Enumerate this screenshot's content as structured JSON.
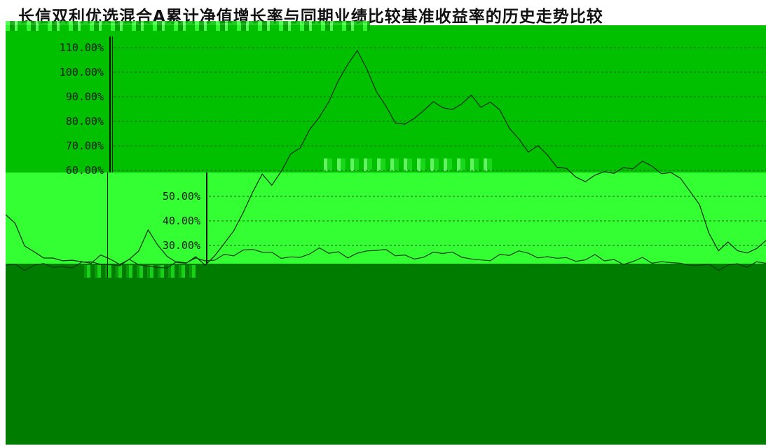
{
  "chart_data": {
    "type": "line",
    "title": "长信双利优选混合A累计净值增长率与同期业绩比较基准收益率的历史走势比较",
    "ylim": [
      0.2,
      1.1
    ],
    "y_ticks": [
      "110.00%",
      "100.00%",
      "90.00%",
      "80.00%",
      "70.00%",
      "60.00%",
      "50.00%",
      "40.00%",
      "30.00%"
    ],
    "grid": true,
    "series": [
      {
        "values": [
          0.42,
          0.38,
          0.3,
          0.26,
          0.25,
          0.24,
          0.23,
          0.24,
          0.22,
          0.23,
          0.25,
          0.24,
          0.22,
          0.23,
          0.28,
          0.35,
          0.3,
          0.25,
          0.22,
          0.23,
          0.24,
          0.22,
          0.25,
          0.3,
          0.36,
          0.42,
          0.52,
          0.58,
          0.54,
          0.6,
          0.66,
          0.7,
          0.76,
          0.82,
          0.88,
          0.96,
          1.04,
          1.08,
          1.02,
          0.92,
          0.86,
          0.8,
          0.78,
          0.82,
          0.84,
          0.88,
          0.86,
          0.84,
          0.88,
          0.9,
          0.86,
          0.88,
          0.84,
          0.78,
          0.72,
          0.68,
          0.7,
          0.66,
          0.62,
          0.6,
          0.58,
          0.55,
          0.58,
          0.6,
          0.58,
          0.62,
          0.6,
          0.64,
          0.62,
          0.58,
          0.6,
          0.56,
          0.52,
          0.46,
          0.34,
          0.28,
          0.3,
          0.28,
          0.26,
          0.28,
          0.32
        ]
      },
      {
        "values": [
          0.22,
          0.21,
          0.2,
          0.21,
          0.22,
          0.21,
          0.2,
          0.21,
          0.22,
          0.23,
          0.22,
          0.21,
          0.22,
          0.23,
          0.22,
          0.21,
          0.2,
          0.21,
          0.22,
          0.23,
          0.24,
          0.23,
          0.24,
          0.25,
          0.26,
          0.27,
          0.28,
          0.27,
          0.26,
          0.25,
          0.24,
          0.25,
          0.26,
          0.28,
          0.27,
          0.26,
          0.25,
          0.26,
          0.27,
          0.28,
          0.27,
          0.26,
          0.25,
          0.24,
          0.25,
          0.26,
          0.27,
          0.26,
          0.25,
          0.24,
          0.23,
          0.24,
          0.25,
          0.26,
          0.27,
          0.26,
          0.25,
          0.24,
          0.25,
          0.24,
          0.23,
          0.24,
          0.25,
          0.24,
          0.23,
          0.22,
          0.23,
          0.24,
          0.23,
          0.22,
          0.23,
          0.22,
          0.21,
          0.22,
          0.21,
          0.2,
          0.21,
          0.22,
          0.21,
          0.22,
          0.23
        ]
      }
    ]
  }
}
